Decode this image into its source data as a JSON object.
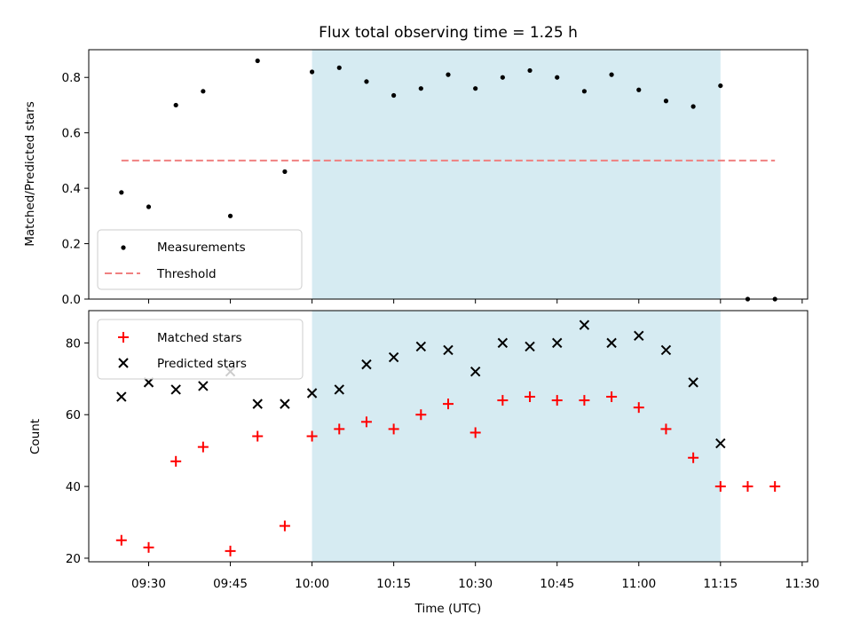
{
  "chart_data": [
    {
      "type": "scatter",
      "title": "Flux total observing time = 1.25 h",
      "xlabel": "",
      "ylabel": "Matched/Predicted stars",
      "ylim": [
        0,
        0.9
      ],
      "yticks": [
        "0.0",
        "0.2",
        "0.4",
        "0.6",
        "0.8"
      ],
      "shaded_interval": [
        "10:00",
        "11:15"
      ],
      "shade_color": "#add8e6",
      "legend_position": "lower-left",
      "series": [
        {
          "name": "Measurements",
          "marker": "dot",
          "color": "#000000",
          "x": [
            "09:25",
            "09:30",
            "09:35",
            "09:40",
            "09:45",
            "09:50",
            "09:55",
            "10:00",
            "10:05",
            "10:10",
            "10:15",
            "10:20",
            "10:25",
            "10:30",
            "10:35",
            "10:40",
            "10:45",
            "10:50",
            "10:55",
            "11:00",
            "11:05",
            "11:10",
            "11:15",
            "11:20",
            "11:25"
          ],
          "y": [
            0.385,
            0.333,
            0.7,
            0.75,
            0.3,
            0.86,
            0.46,
            0.82,
            0.835,
            0.785,
            0.735,
            0.76,
            0.81,
            0.76,
            0.8,
            0.825,
            0.8,
            0.75,
            0.81,
            0.755,
            0.715,
            0.695,
            0.77,
            0.0,
            0.0
          ]
        },
        {
          "name": "Threshold",
          "marker": "dashed-line",
          "color": "#f08080",
          "x": [
            "09:25",
            "11:25"
          ],
          "y": [
            0.5,
            0.5
          ]
        }
      ]
    },
    {
      "type": "scatter",
      "title": "",
      "xlabel": "Time (UTC)",
      "ylabel": "Count",
      "ylim": [
        19,
        89
      ],
      "yticks": [
        "20",
        "40",
        "60",
        "80"
      ],
      "x_range": [
        "09:19",
        "11:31"
      ],
      "xticks": [
        "09:30",
        "09:45",
        "10:00",
        "10:15",
        "10:30",
        "10:45",
        "11:00",
        "11:15",
        "11:30"
      ],
      "shaded_interval": [
        "10:00",
        "11:15"
      ],
      "shade_color": "#add8e6",
      "legend_position": "top-left",
      "series": [
        {
          "name": "Matched stars",
          "marker": "plus",
          "color": "#ff0000",
          "x": [
            "09:25",
            "09:30",
            "09:35",
            "09:40",
            "09:45",
            "09:50",
            "09:55",
            "10:00",
            "10:05",
            "10:10",
            "10:15",
            "10:20",
            "10:25",
            "10:30",
            "10:35",
            "10:40",
            "10:45",
            "10:50",
            "10:55",
            "11:00",
            "11:05",
            "11:10",
            "11:15",
            "11:20",
            "11:25"
          ],
          "y": [
            25,
            23,
            47,
            51,
            22,
            54,
            29,
            54,
            56,
            58,
            56,
            60,
            63,
            55,
            64,
            65,
            64,
            64,
            65,
            62,
            56,
            48,
            40,
            40,
            40
          ]
        },
        {
          "name": "Predicted stars",
          "marker": "x",
          "color": "#000000",
          "x": [
            "09:25",
            "09:30",
            "09:35",
            "09:40",
            "09:45",
            "09:50",
            "09:55",
            "10:00",
            "10:05",
            "10:10",
            "10:15",
            "10:20",
            "10:25",
            "10:30",
            "10:35",
            "10:40",
            "10:45",
            "10:50",
            "10:55",
            "11:00",
            "11:05",
            "11:10",
            "11:15"
          ],
          "y": [
            65,
            69,
            67,
            68,
            72,
            63,
            63,
            66,
            67,
            74,
            76,
            79,
            78,
            72,
            80,
            79,
            80,
            85,
            80,
            82,
            78,
            69,
            52
          ]
        }
      ]
    }
  ]
}
